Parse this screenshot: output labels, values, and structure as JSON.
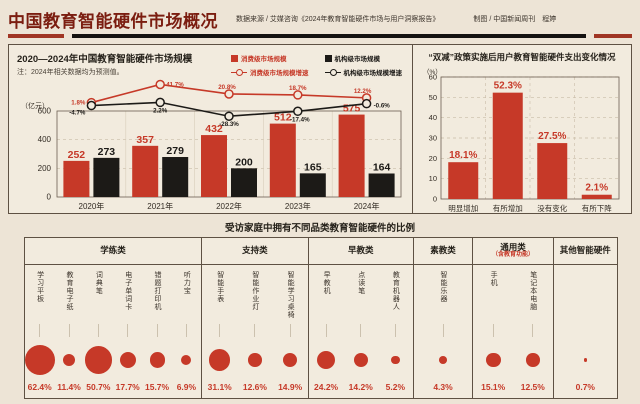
{
  "page": {
    "title": "中国教育智能硬件市场概况",
    "source": "数据来源 / 艾媒咨询《2024年教育智能硬件市场与用户洞察报告》",
    "credit": "制图 / 中国新闻周刊　程婷"
  },
  "colors": {
    "red": "#C63928",
    "black": "#1C1A17",
    "maroon": "#7B1D10",
    "panel_bg": "#F2EBDE",
    "page_bg": "#EDE4D6",
    "border": "#5E5143",
    "grid": "#C9BCA7",
    "text_dark": "#332C24"
  },
  "chart_data": [
    {
      "type": "bar",
      "subtype": "grouped bars with growth-rate lines",
      "title": "2020—2024年中国教育智能硬件市场规模",
      "note": "注：2024年相关数据均为预测值。",
      "unit_label": "（亿元）",
      "categories": [
        "2020年",
        "2021年",
        "2022年",
        "2023年",
        "2024年"
      ],
      "ylim": [
        0,
        600
      ],
      "yticks": [
        600,
        400,
        200,
        0
      ],
      "series": [
        {
          "name": "消费级市场规模",
          "kind": "bar",
          "color": "#C63928",
          "values": [
            252,
            357,
            432,
            512,
            575
          ]
        },
        {
          "name": "机构级市场规模",
          "kind": "bar",
          "color": "#1C1A17",
          "values": [
            273,
            279,
            200,
            165,
            164
          ]
        },
        {
          "name": "消费级市场规模增速",
          "kind": "line",
          "color": "#C63928",
          "values": [
            1.8,
            41.7,
            20.8,
            18.7,
            12.2
          ],
          "labels": [
            "1.8%",
            "41.7%",
            "20.8%",
            "18.7%",
            "12.2%"
          ]
        },
        {
          "name": "机构级市场规模增速",
          "kind": "line",
          "color": "#1C1A17",
          "values": [
            -4.7,
            2.2,
            -28.3,
            -17.4,
            -0.6
          ],
          "labels": [
            "-4.7%",
            "2.2%",
            "-28.3%",
            "-17.4%",
            "-0.6%"
          ]
        }
      ]
    },
    {
      "type": "bar",
      "title": "“双减”政策实施后用户教育智能硬件支出变化情况",
      "unit_label": "（%）",
      "categories": [
        "明显增加",
        "有所增加",
        "没有变化",
        "有所下降"
      ],
      "values": [
        18.1,
        52.3,
        27.5,
        2.1
      ],
      "labels": [
        "18.1%",
        "52.3%",
        "27.5%",
        "2.1%"
      ],
      "ylim": [
        0,
        60
      ],
      "yticks": [
        60,
        50,
        40,
        30,
        20,
        10,
        0
      ]
    },
    {
      "type": "bubble",
      "title": "受访家庭中拥有不同品类教育智能硬件的比例",
      "groups": [
        {
          "name": "学练类",
          "flex": 30,
          "items": [
            {
              "label": "学习平板",
              "value": 62.4,
              "pct": "62.4%"
            },
            {
              "label": "教育电子纸",
              "value": 11.4,
              "pct": "11.4%"
            },
            {
              "label": "词典笔",
              "value": 50.7,
              "pct": "50.7%"
            },
            {
              "label": "电子单词卡",
              "value": 17.7,
              "pct": "17.7%"
            },
            {
              "label": "错题打印机",
              "value": 15.7,
              "pct": "15.7%"
            },
            {
              "label": "听力宝",
              "value": 6.9,
              "pct": "6.9%"
            }
          ]
        },
        {
          "name": "支持类",
          "flex": 18,
          "items": [
            {
              "label": "智能手表",
              "value": 31.1,
              "pct": "31.1%"
            },
            {
              "label": "智能作业灯",
              "value": 12.6,
              "pct": "12.6%"
            },
            {
              "label": "智能学习桌椅",
              "value": 14.9,
              "pct": "14.9%"
            }
          ]
        },
        {
          "name": "早教类",
          "flex": 17.7,
          "items": [
            {
              "label": "早教机",
              "value": 24.2,
              "pct": "24.2%"
            },
            {
              "label": "点读笔",
              "value": 14.2,
              "pct": "14.2%"
            },
            {
              "label": "教育机器人",
              "value": 5.2,
              "pct": "5.2%"
            }
          ]
        },
        {
          "name": "素教类",
          "flex": 10,
          "items": [
            {
              "label": "智能乐器",
              "value": 4.3,
              "pct": "4.3%"
            }
          ]
        },
        {
          "name": "通用类",
          "sub": "（含教育功能）",
          "flex": 13.5,
          "items": [
            {
              "label": "手机",
              "value": 15.1,
              "pct": "15.1%"
            },
            {
              "label": "笔记本电脑",
              "value": 12.5,
              "pct": "12.5%"
            }
          ]
        },
        {
          "name": "其他智能硬件",
          "flex": 10.8,
          "items": [
            {
              "label": "",
              "value": 0.7,
              "pct": "0.7%"
            }
          ]
        }
      ]
    }
  ]
}
